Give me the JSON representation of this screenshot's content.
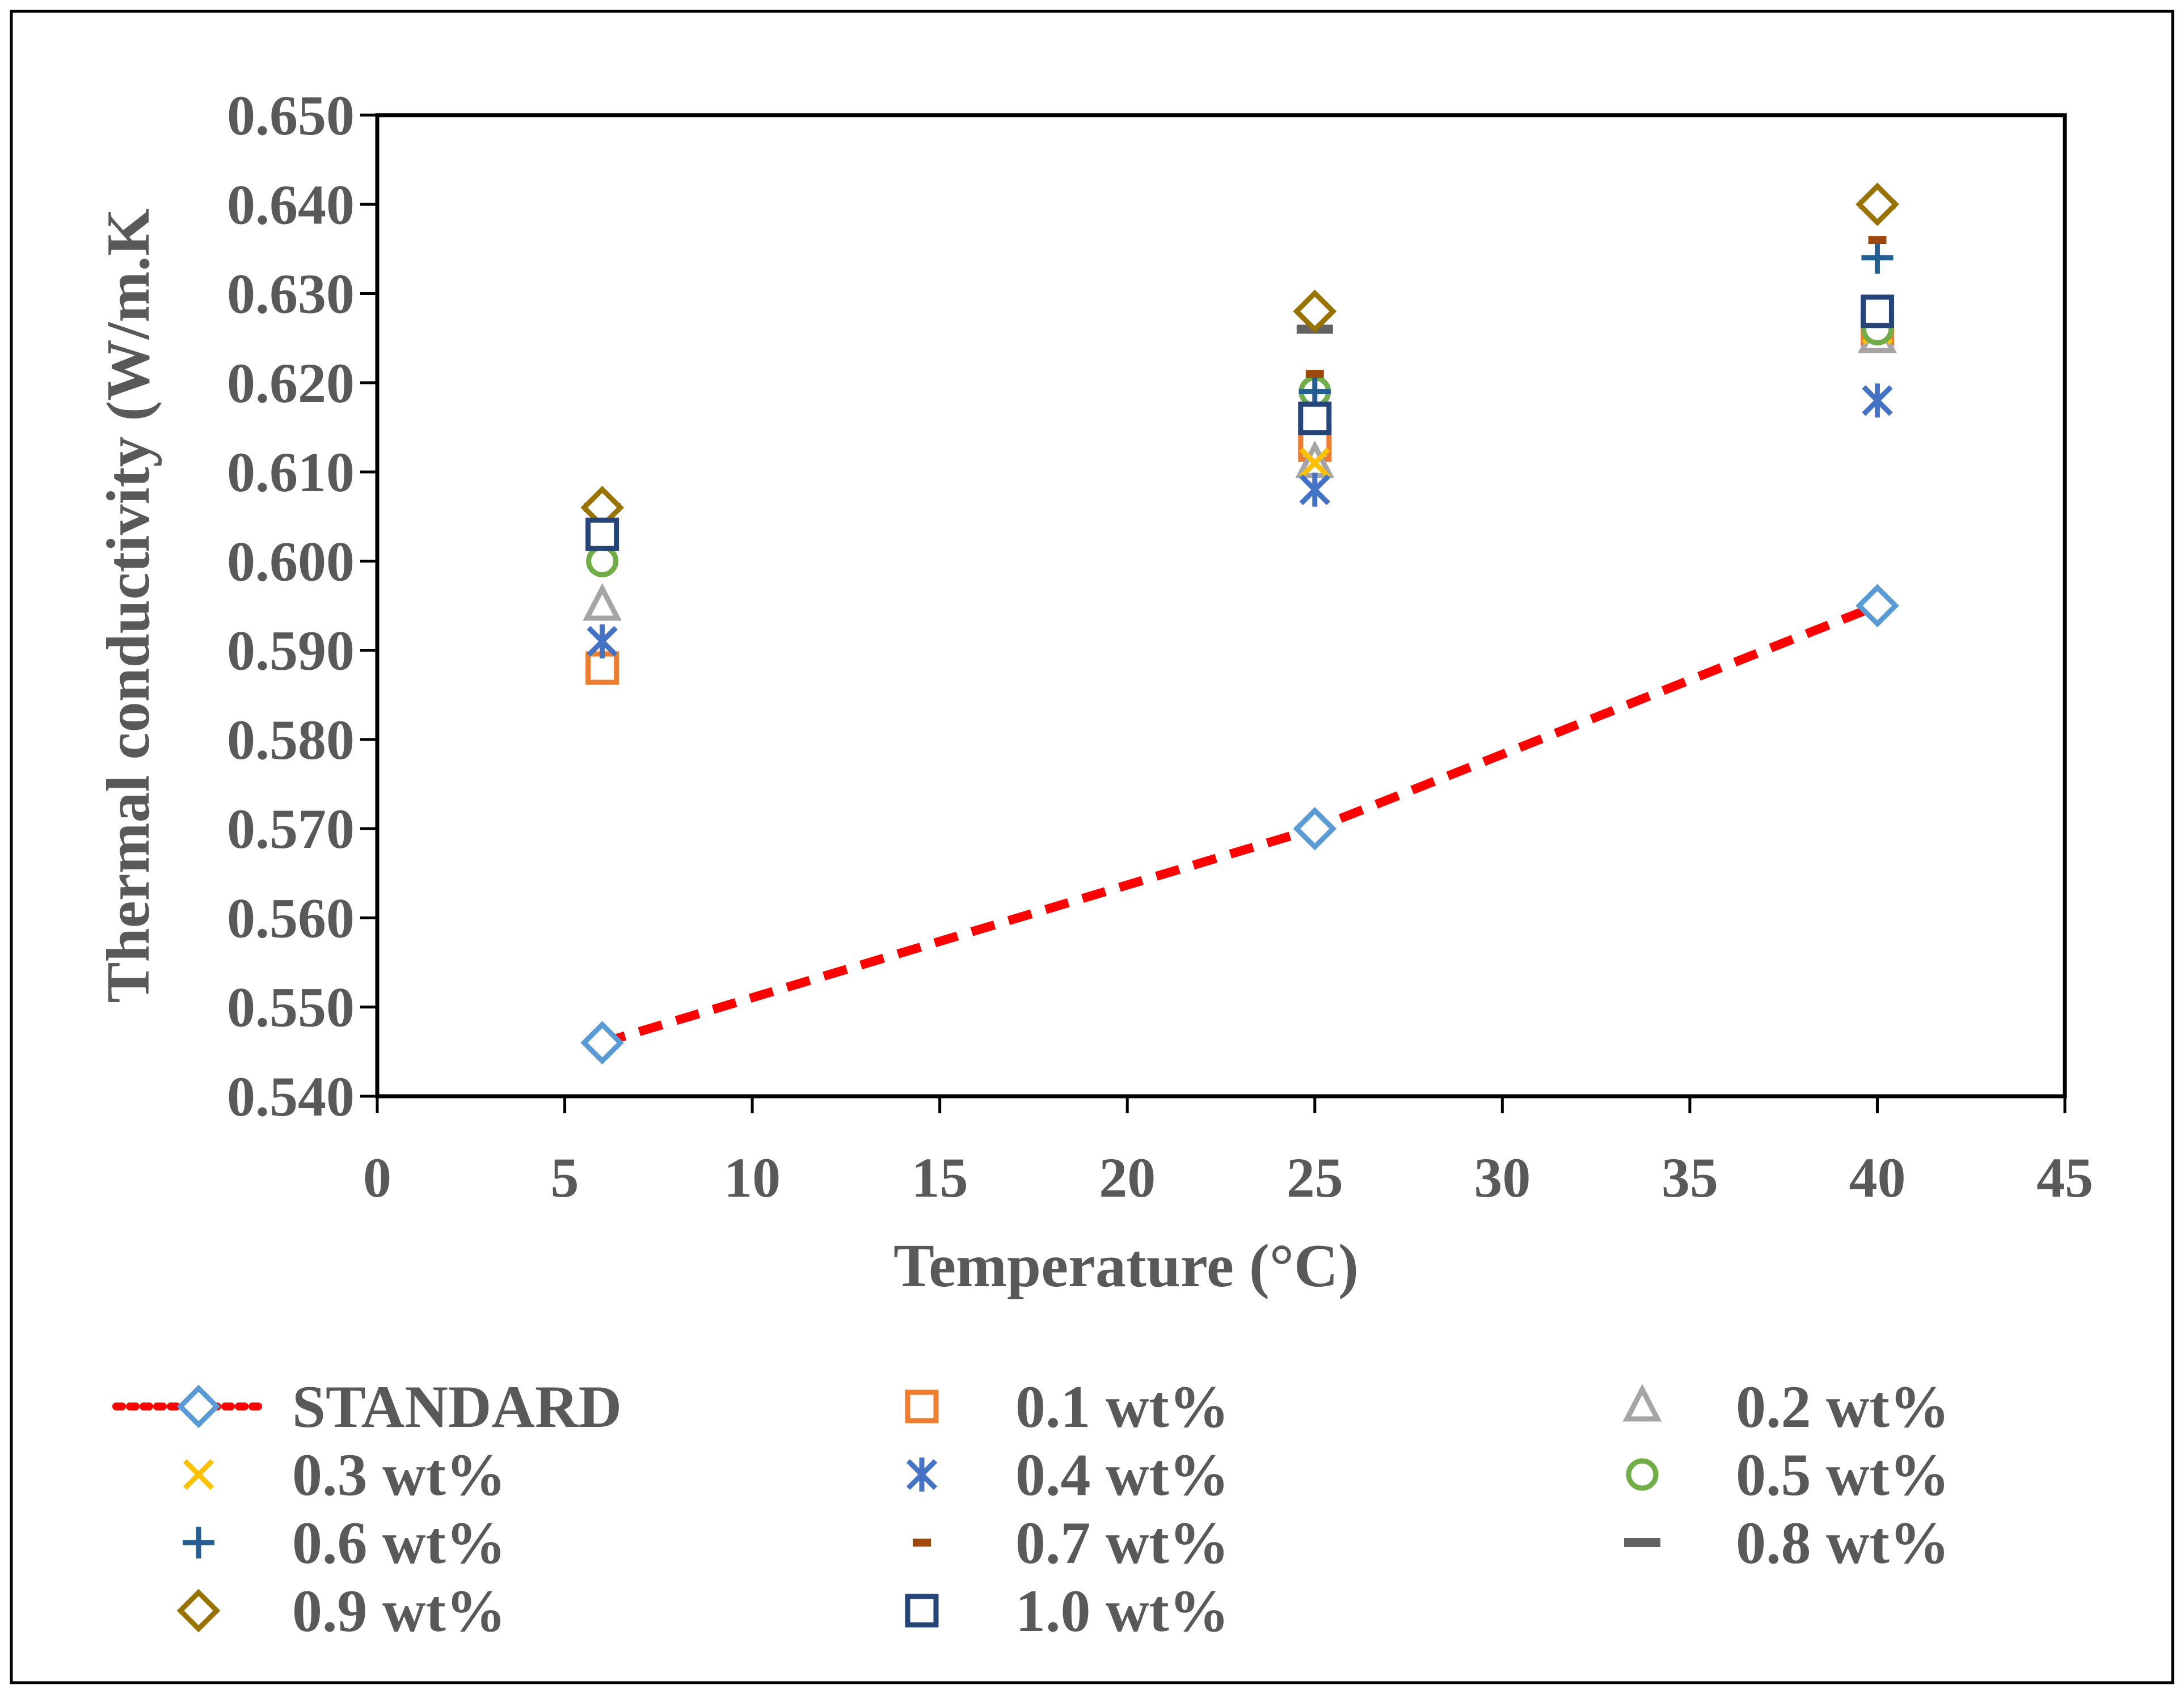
{
  "chart_data": {
    "type": "scatter",
    "xlabel": "Temperature (°C)",
    "ylabel": "Thermal conductivity (W/m.K",
    "xlim": [
      0,
      45
    ],
    "ylim": [
      0.54,
      0.65
    ],
    "xticks": [
      0,
      5,
      10,
      15,
      20,
      25,
      30,
      35,
      40,
      45
    ],
    "yticks": [
      0.54,
      0.55,
      0.56,
      0.57,
      0.58,
      0.59,
      0.6,
      0.61,
      0.62,
      0.63,
      0.64,
      0.65
    ],
    "xtick_labels": [
      "0",
      "5",
      "10",
      "15",
      "20",
      "25",
      "30",
      "35",
      "40",
      "45"
    ],
    "ytick_labels": [
      "0.540",
      "0.550",
      "0.560",
      "0.570",
      "0.580",
      "0.590",
      "0.600",
      "0.610",
      "0.620",
      "0.630",
      "0.640",
      "0.650"
    ],
    "grid": false,
    "legend_position": "bottom",
    "series": [
      {
        "name": "STANDARD",
        "marker": "diamond-open",
        "color": "#5B9BD5",
        "line": "dotted",
        "line_color": "#FF0000",
        "points": [
          {
            "x": 6,
            "y": 0.546
          },
          {
            "x": 25,
            "y": 0.57
          },
          {
            "x": 40,
            "y": 0.595
          }
        ]
      },
      {
        "name": "0.1 wt%",
        "marker": "square-open",
        "color": "#ED7D31",
        "points": [
          {
            "x": 6,
            "y": 0.588
          },
          {
            "x": 25,
            "y": 0.613
          },
          {
            "x": 40,
            "y": 0.626
          }
        ]
      },
      {
        "name": "0.2 wt%",
        "marker": "triangle-open",
        "color": "#A5A5A5",
        "points": [
          {
            "x": 6,
            "y": 0.595
          },
          {
            "x": 25,
            "y": 0.611
          },
          {
            "x": 40,
            "y": 0.625
          }
        ]
      },
      {
        "name": "0.3 wt%",
        "marker": "x",
        "color": "#FFC000",
        "points": [
          {
            "x": 6,
            "y": 0.591
          },
          {
            "x": 25,
            "y": 0.611
          },
          {
            "x": 40,
            "y": 0.626
          }
        ]
      },
      {
        "name": "0.4 wt%",
        "marker": "asterisk",
        "color": "#4472C4",
        "points": [
          {
            "x": 6,
            "y": 0.591
          },
          {
            "x": 25,
            "y": 0.608
          },
          {
            "x": 40,
            "y": 0.618
          }
        ]
      },
      {
        "name": "0.5 wt%",
        "marker": "circle-open",
        "color": "#70AD47",
        "points": [
          {
            "x": 6,
            "y": 0.6
          },
          {
            "x": 25,
            "y": 0.619
          },
          {
            "x": 40,
            "y": 0.626
          }
        ]
      },
      {
        "name": "0.6 wt%",
        "marker": "plus",
        "color": "#255E91",
        "points": [
          {
            "x": 6,
            "y": 0.604
          },
          {
            "x": 25,
            "y": 0.619
          },
          {
            "x": 40,
            "y": 0.634
          }
        ]
      },
      {
        "name": "0.7 wt%",
        "marker": "short-dash",
        "color": "#9E480E",
        "points": [
          {
            "x": 6,
            "y": 0.607
          },
          {
            "x": 25,
            "y": 0.621
          },
          {
            "x": 40,
            "y": 0.636
          }
        ]
      },
      {
        "name": "0.8 wt%",
        "marker": "dash",
        "color": "#636363",
        "points": [
          {
            "x": 6,
            "y": 0.606
          },
          {
            "x": 25,
            "y": 0.626
          },
          {
            "x": 40,
            "y": 0.64
          }
        ]
      },
      {
        "name": "0.9 wt%",
        "marker": "diamond-open",
        "color": "#997300",
        "points": [
          {
            "x": 6,
            "y": 0.606
          },
          {
            "x": 25,
            "y": 0.628
          },
          {
            "x": 40,
            "y": 0.64
          }
        ]
      },
      {
        "name": "1.0 wt%",
        "marker": "square-open",
        "color": "#264478",
        "points": [
          {
            "x": 6,
            "y": 0.603
          },
          {
            "x": 25,
            "y": 0.616
          },
          {
            "x": 40,
            "y": 0.628
          }
        ]
      }
    ]
  }
}
